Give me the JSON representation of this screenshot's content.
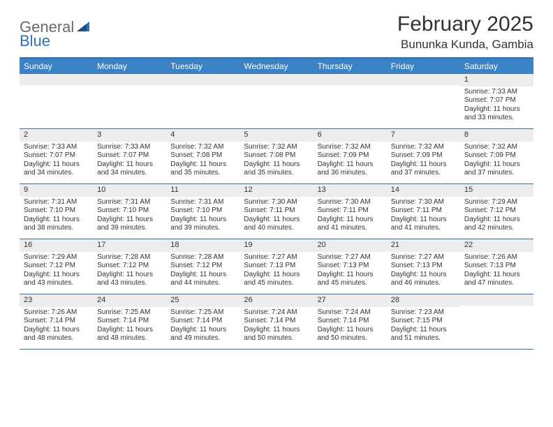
{
  "brand": {
    "part1": "General",
    "part2": "Blue"
  },
  "title": "February 2025",
  "location": "Bununka Kunda, Gambia",
  "colors": {
    "header_bg": "#3b82c4",
    "border": "#2f6fb3",
    "daynum_bg": "#ededed",
    "text": "#333333",
    "logo_gray": "#6a6a6a",
    "logo_blue": "#2f6fb3"
  },
  "weekdays": [
    "Sunday",
    "Monday",
    "Tuesday",
    "Wednesday",
    "Thursday",
    "Friday",
    "Saturday"
  ],
  "weeks": [
    [
      null,
      null,
      null,
      null,
      null,
      null,
      {
        "n": "1",
        "sr": "Sunrise: 7:33 AM",
        "ss": "Sunset: 7:07 PM",
        "dl": "Daylight: 11 hours and 33 minutes."
      }
    ],
    [
      {
        "n": "2",
        "sr": "Sunrise: 7:33 AM",
        "ss": "Sunset: 7:07 PM",
        "dl": "Daylight: 11 hours and 34 minutes."
      },
      {
        "n": "3",
        "sr": "Sunrise: 7:33 AM",
        "ss": "Sunset: 7:07 PM",
        "dl": "Daylight: 11 hours and 34 minutes."
      },
      {
        "n": "4",
        "sr": "Sunrise: 7:32 AM",
        "ss": "Sunset: 7:08 PM",
        "dl": "Daylight: 11 hours and 35 minutes."
      },
      {
        "n": "5",
        "sr": "Sunrise: 7:32 AM",
        "ss": "Sunset: 7:08 PM",
        "dl": "Daylight: 11 hours and 35 minutes."
      },
      {
        "n": "6",
        "sr": "Sunrise: 7:32 AM",
        "ss": "Sunset: 7:09 PM",
        "dl": "Daylight: 11 hours and 36 minutes."
      },
      {
        "n": "7",
        "sr": "Sunrise: 7:32 AM",
        "ss": "Sunset: 7:09 PM",
        "dl": "Daylight: 11 hours and 37 minutes."
      },
      {
        "n": "8",
        "sr": "Sunrise: 7:32 AM",
        "ss": "Sunset: 7:09 PM",
        "dl": "Daylight: 11 hours and 37 minutes."
      }
    ],
    [
      {
        "n": "9",
        "sr": "Sunrise: 7:31 AM",
        "ss": "Sunset: 7:10 PM",
        "dl": "Daylight: 11 hours and 38 minutes."
      },
      {
        "n": "10",
        "sr": "Sunrise: 7:31 AM",
        "ss": "Sunset: 7:10 PM",
        "dl": "Daylight: 11 hours and 39 minutes."
      },
      {
        "n": "11",
        "sr": "Sunrise: 7:31 AM",
        "ss": "Sunset: 7:10 PM",
        "dl": "Daylight: 11 hours and 39 minutes."
      },
      {
        "n": "12",
        "sr": "Sunrise: 7:30 AM",
        "ss": "Sunset: 7:11 PM",
        "dl": "Daylight: 11 hours and 40 minutes."
      },
      {
        "n": "13",
        "sr": "Sunrise: 7:30 AM",
        "ss": "Sunset: 7:11 PM",
        "dl": "Daylight: 11 hours and 41 minutes."
      },
      {
        "n": "14",
        "sr": "Sunrise: 7:30 AM",
        "ss": "Sunset: 7:11 PM",
        "dl": "Daylight: 11 hours and 41 minutes."
      },
      {
        "n": "15",
        "sr": "Sunrise: 7:29 AM",
        "ss": "Sunset: 7:12 PM",
        "dl": "Daylight: 11 hours and 42 minutes."
      }
    ],
    [
      {
        "n": "16",
        "sr": "Sunrise: 7:29 AM",
        "ss": "Sunset: 7:12 PM",
        "dl": "Daylight: 11 hours and 43 minutes."
      },
      {
        "n": "17",
        "sr": "Sunrise: 7:28 AM",
        "ss": "Sunset: 7:12 PM",
        "dl": "Daylight: 11 hours and 43 minutes."
      },
      {
        "n": "18",
        "sr": "Sunrise: 7:28 AM",
        "ss": "Sunset: 7:12 PM",
        "dl": "Daylight: 11 hours and 44 minutes."
      },
      {
        "n": "19",
        "sr": "Sunrise: 7:27 AM",
        "ss": "Sunset: 7:13 PM",
        "dl": "Daylight: 11 hours and 45 minutes."
      },
      {
        "n": "20",
        "sr": "Sunrise: 7:27 AM",
        "ss": "Sunset: 7:13 PM",
        "dl": "Daylight: 11 hours and 45 minutes."
      },
      {
        "n": "21",
        "sr": "Sunrise: 7:27 AM",
        "ss": "Sunset: 7:13 PM",
        "dl": "Daylight: 11 hours and 46 minutes."
      },
      {
        "n": "22",
        "sr": "Sunrise: 7:26 AM",
        "ss": "Sunset: 7:13 PM",
        "dl": "Daylight: 11 hours and 47 minutes."
      }
    ],
    [
      {
        "n": "23",
        "sr": "Sunrise: 7:26 AM",
        "ss": "Sunset: 7:14 PM",
        "dl": "Daylight: 11 hours and 48 minutes."
      },
      {
        "n": "24",
        "sr": "Sunrise: 7:25 AM",
        "ss": "Sunset: 7:14 PM",
        "dl": "Daylight: 11 hours and 48 minutes."
      },
      {
        "n": "25",
        "sr": "Sunrise: 7:25 AM",
        "ss": "Sunset: 7:14 PM",
        "dl": "Daylight: 11 hours and 49 minutes."
      },
      {
        "n": "26",
        "sr": "Sunrise: 7:24 AM",
        "ss": "Sunset: 7:14 PM",
        "dl": "Daylight: 11 hours and 50 minutes."
      },
      {
        "n": "27",
        "sr": "Sunrise: 7:24 AM",
        "ss": "Sunset: 7:14 PM",
        "dl": "Daylight: 11 hours and 50 minutes."
      },
      {
        "n": "28",
        "sr": "Sunrise: 7:23 AM",
        "ss": "Sunset: 7:15 PM",
        "dl": "Daylight: 11 hours and 51 minutes."
      },
      null
    ]
  ]
}
